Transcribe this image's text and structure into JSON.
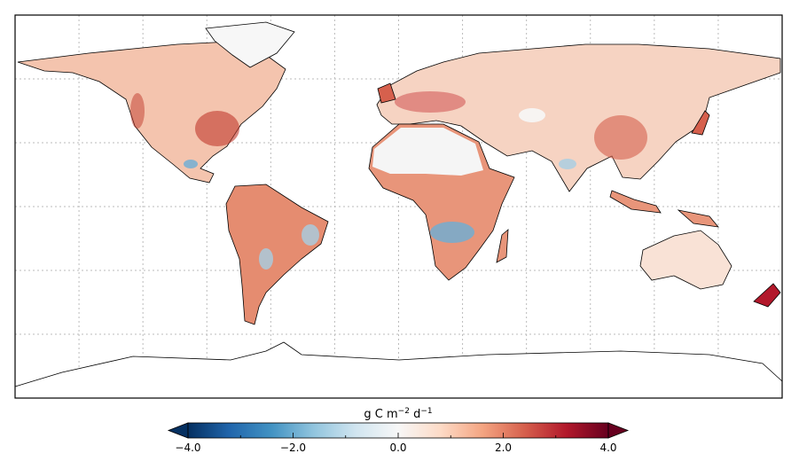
{
  "map": {
    "grid": true,
    "grid_spacing_degrees": 30,
    "projection": "equirectangular"
  },
  "colorbar": {
    "label_base": "g C m",
    "label_exp1": "−2",
    "label_mid": " d",
    "label_exp2": "−1",
    "ticks": [
      "−4.0",
      "−2.0",
      "0.0",
      "2.0",
      "4.0"
    ],
    "range": [
      -4.0,
      4.0
    ],
    "extend": "both",
    "colormap": [
      "#053061",
      "#2166ac",
      "#4393c3",
      "#92c5de",
      "#d1e5f0",
      "#f7f7f7",
      "#fddbc7",
      "#f4a582",
      "#d6604d",
      "#b2182b",
      "#67001f"
    ]
  }
}
